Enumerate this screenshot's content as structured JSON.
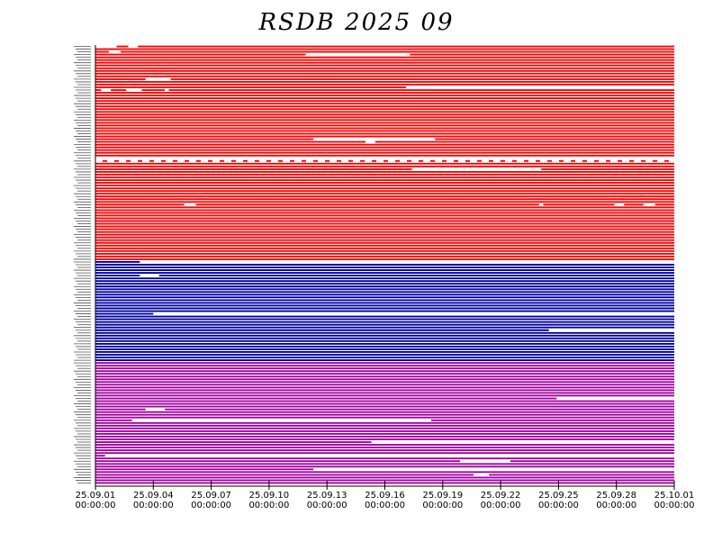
{
  "chart_data": {
    "type": "timeline",
    "title": "RSDB  2025  09",
    "x_tick_labels": [
      [
        "25.09.01",
        "00:00:00"
      ],
      [
        "25.09.04",
        "00:00:00"
      ],
      [
        "25.09.07",
        "00:00:00"
      ],
      [
        "25.09.10",
        "00:00:00"
      ],
      [
        "25.09.13",
        "00:00:00"
      ],
      [
        "25.09.16",
        "00:00:00"
      ],
      [
        "25.09.19",
        "00:00:00"
      ],
      [
        "25.09.22",
        "00:00:00"
      ],
      [
        "25.09.25",
        "00:00:00"
      ],
      [
        "25.09.28",
        "00:00:00"
      ],
      [
        "25.10.01",
        "00:00:00"
      ]
    ],
    "x_range_days": [
      0,
      30
    ],
    "groups": [
      {
        "color": "#ff0000",
        "rows": 79
      },
      {
        "color": "#0000a0",
        "rows": 37
      },
      {
        "color": "#a000a0",
        "rows": 45
      }
    ],
    "gaps": [
      {
        "row": 0,
        "from": 0.0,
        "to": 1.1
      },
      {
        "row": 0,
        "from": 1.7,
        "to": 2.2
      },
      {
        "row": 2,
        "from": 0.7,
        "to": 1.3
      },
      {
        "row": 3,
        "from": 10.9,
        "to": 16.3
      },
      {
        "row": 12,
        "from": 2.6,
        "to": 3.9
      },
      {
        "row": 15,
        "from": 16.1,
        "to": 30.0
      },
      {
        "row": 16,
        "from": 0.3,
        "to": 0.8
      },
      {
        "row": 16,
        "from": 1.6,
        "to": 2.4
      },
      {
        "row": 16,
        "from": 3.6,
        "to": 3.8
      },
      {
        "row": 34,
        "from": 11.3,
        "to": 17.6
      },
      {
        "row": 35,
        "from": 14.0,
        "to": 14.5
      },
      {
        "row": 41,
        "from": 0.0,
        "to": 30.0
      },
      {
        "row": 45,
        "from": 16.4,
        "to": 23.1
      },
      {
        "row": 58,
        "from": 4.6,
        "to": 5.2
      },
      {
        "row": 58,
        "from": 23.0,
        "to": 23.2
      },
      {
        "row": 58,
        "from": 26.9,
        "to": 27.4
      },
      {
        "row": 58,
        "from": 28.4,
        "to": 29.0
      },
      {
        "row": 79,
        "from": 2.3,
        "to": 30.0
      },
      {
        "row": 84,
        "from": 2.3,
        "to": 3.3
      },
      {
        "row": 98,
        "from": 3.0,
        "to": 30.0
      },
      {
        "row": 104,
        "from": 23.5,
        "to": 30.0
      },
      {
        "row": 129,
        "from": 23.9,
        "to": 30.0
      },
      {
        "row": 133,
        "from": 2.6,
        "to": 3.6
      },
      {
        "row": 137,
        "from": 1.9,
        "to": 17.4
      },
      {
        "row": 145,
        "from": 14.3,
        "to": 30.0
      },
      {
        "row": 150,
        "from": 0.5,
        "to": 30.0
      },
      {
        "row": 152,
        "from": 18.9,
        "to": 21.5
      },
      {
        "row": 155,
        "from": 11.3,
        "to": 30.0
      },
      {
        "row": 157,
        "from": 19.6,
        "to": 20.4
      }
    ]
  }
}
